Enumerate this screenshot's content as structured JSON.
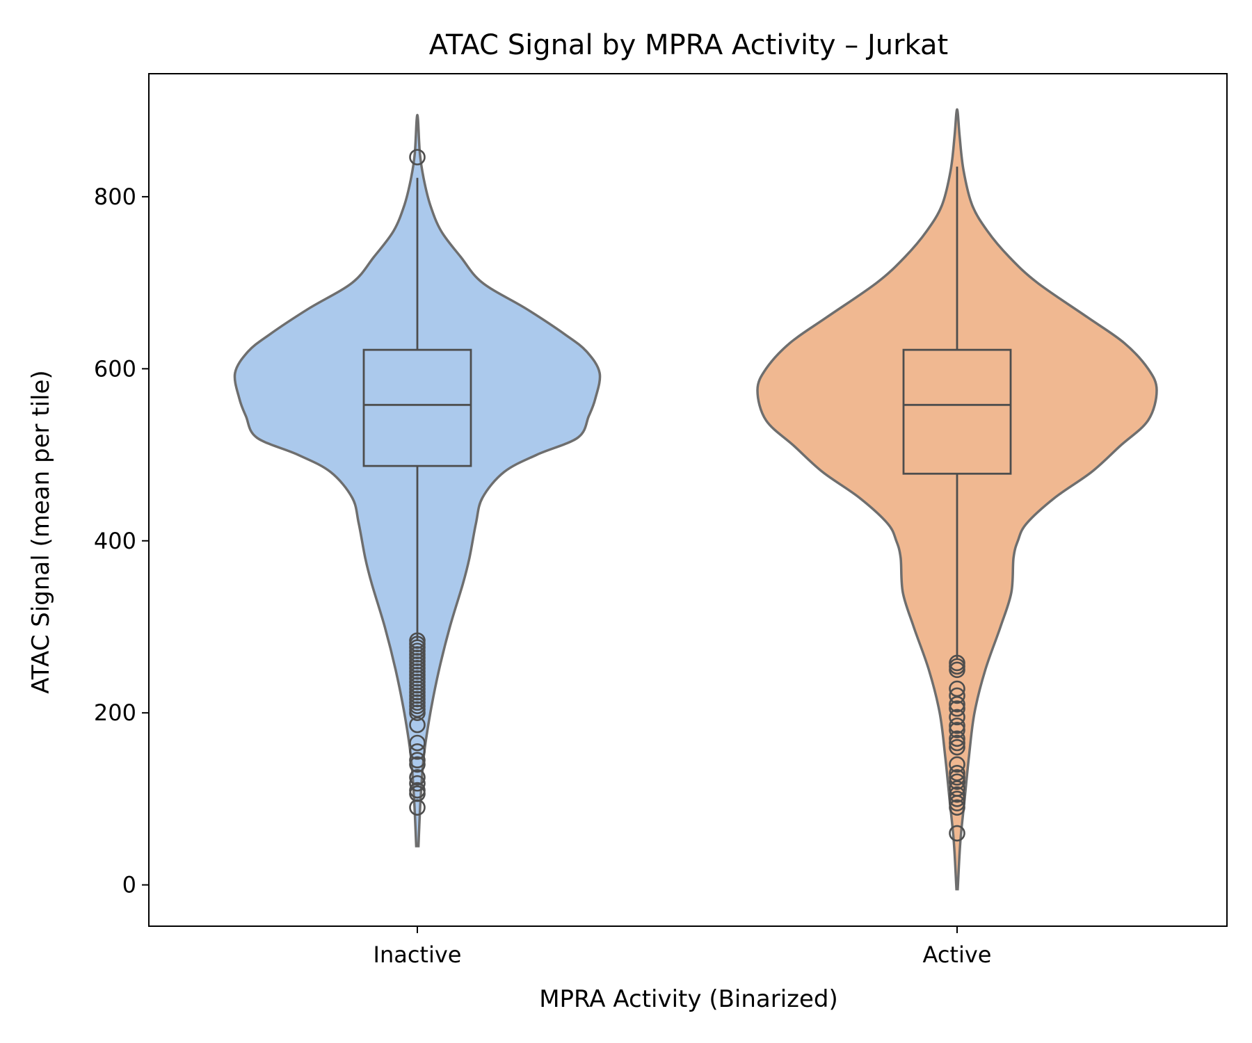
{
  "chart_data": {
    "type": "violin",
    "title": "ATAC Signal by MPRA Activity – Jurkat",
    "xlabel": "MPRA Activity (Binarized)",
    "ylabel": "ATAC Signal (mean per tile)",
    "categories": [
      "Inactive",
      "Active"
    ],
    "yticks": [
      "0",
      "200",
      "400",
      "600",
      "800"
    ],
    "ylim": [
      -48,
      943
    ],
    "grid": false,
    "legend": "none",
    "groups": [
      {
        "name": "Inactive",
        "color": "#abc9ec",
        "box": {
          "q1": 487,
          "median": 558,
          "q3": 622,
          "whisker_low": 284,
          "whisker_high": 822
        },
        "violin_range": [
          45,
          890
        ],
        "density": [
          [
            45,
            0.005
          ],
          [
            100,
            0.015
          ],
          [
            150,
            0.03
          ],
          [
            200,
            0.06
          ],
          [
            250,
            0.1
          ],
          [
            300,
            0.15
          ],
          [
            350,
            0.21
          ],
          [
            380,
            0.24
          ],
          [
            420,
            0.27
          ],
          [
            450,
            0.3
          ],
          [
            480,
            0.4
          ],
          [
            500,
            0.55
          ],
          [
            520,
            0.74
          ],
          [
            545,
            0.79
          ],
          [
            565,
            0.82
          ],
          [
            595,
            0.84
          ],
          [
            620,
            0.78
          ],
          [
            640,
            0.68
          ],
          [
            670,
            0.5
          ],
          [
            700,
            0.3
          ],
          [
            730,
            0.2
          ],
          [
            760,
            0.11
          ],
          [
            790,
            0.06
          ],
          [
            820,
            0.03
          ],
          [
            850,
            0.012
          ],
          [
            890,
            0.003
          ]
        ],
        "outliers": [
          846,
          284,
          280,
          276,
          272,
          268,
          264,
          260,
          256,
          252,
          248,
          244,
          240,
          236,
          232,
          228,
          224,
          220,
          216,
          212,
          208,
          204,
          200,
          186,
          165,
          155,
          145,
          140,
          125,
          118,
          110,
          106,
          90
        ]
      },
      {
        "name": "Active",
        "color": "#f0b891",
        "box": {
          "q1": 478,
          "median": 558,
          "q3": 622,
          "whisker_low": 262,
          "whisker_high": 835
        },
        "violin_range": [
          -5,
          898
        ],
        "density": [
          [
            -5,
            0.003
          ],
          [
            50,
            0.015
          ],
          [
            100,
            0.035
          ],
          [
            150,
            0.055
          ],
          [
            200,
            0.08
          ],
          [
            250,
            0.13
          ],
          [
            300,
            0.2
          ],
          [
            340,
            0.25
          ],
          [
            380,
            0.26
          ],
          [
            400,
            0.28
          ],
          [
            420,
            0.32
          ],
          [
            450,
            0.45
          ],
          [
            480,
            0.62
          ],
          [
            510,
            0.75
          ],
          [
            540,
            0.88
          ],
          [
            575,
            0.92
          ],
          [
            600,
            0.88
          ],
          [
            630,
            0.77
          ],
          [
            660,
            0.6
          ],
          [
            700,
            0.37
          ],
          [
            730,
            0.24
          ],
          [
            760,
            0.14
          ],
          [
            790,
            0.07
          ],
          [
            830,
            0.03
          ],
          [
            870,
            0.012
          ],
          [
            898,
            0.003
          ]
        ],
        "outliers": [
          258,
          254,
          250,
          228,
          220,
          210,
          205,
          195,
          185,
          180,
          170,
          165,
          160,
          140,
          130,
          125,
          120,
          112,
          105,
          100,
          95,
          90,
          60
        ]
      }
    ]
  }
}
